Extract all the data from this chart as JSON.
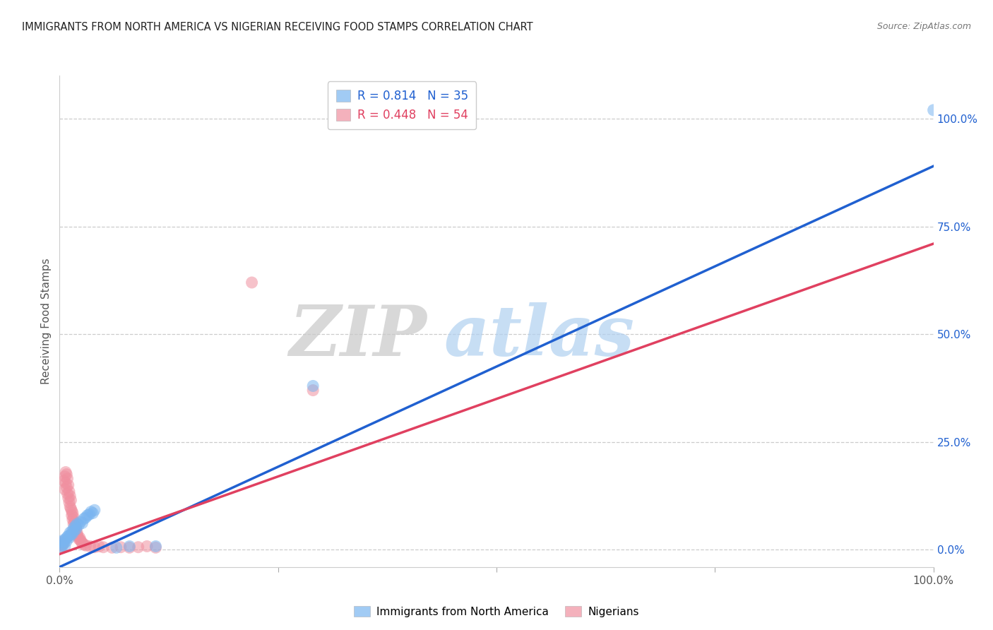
{
  "title": "IMMIGRANTS FROM NORTH AMERICA VS NIGERIAN RECEIVING FOOD STAMPS CORRELATION CHART",
  "source": "Source: ZipAtlas.com",
  "ylabel": "Receiving Food Stamps",
  "xlim": [
    0.0,
    1.0
  ],
  "ylim": [
    -0.04,
    1.1
  ],
  "ytick_positions": [
    0.0,
    0.25,
    0.5,
    0.75,
    1.0
  ],
  "ytick_labels": [
    "0.0%",
    "25.0%",
    "50.0%",
    "75.0%",
    "100.0%"
  ],
  "xtick_positions": [
    0.0,
    0.25,
    0.5,
    0.75,
    1.0
  ],
  "xtick_labels": [
    "0.0%",
    "",
    "",
    "",
    "100.0%"
  ],
  "grid_color": "#cccccc",
  "background_color": "#ffffff",
  "watermark_zip": "ZIP",
  "watermark_atlas": "atlas",
  "legend_r1": "0.814",
  "legend_n1": "35",
  "legend_r2": "0.448",
  "legend_n2": "54",
  "blue_color": "#7ab5f0",
  "pink_color": "#f090a0",
  "blue_line_color": "#2060d0",
  "pink_line_color": "#e04060",
  "blue_label": "Immigrants from North America",
  "pink_label": "Nigerians",
  "blue_line_slope": 0.93,
  "blue_line_intercept": -0.04,
  "pink_line_slope": 0.72,
  "pink_line_intercept": -0.01,
  "blue_scatter": [
    [
      0.001,
      0.005
    ],
    [
      0.002,
      0.018
    ],
    [
      0.003,
      0.01
    ],
    [
      0.004,
      0.022
    ],
    [
      0.005,
      0.015
    ],
    [
      0.006,
      0.008
    ],
    [
      0.007,
      0.025
    ],
    [
      0.008,
      0.02
    ],
    [
      0.009,
      0.03
    ],
    [
      0.01,
      0.032
    ],
    [
      0.011,
      0.028
    ],
    [
      0.012,
      0.04
    ],
    [
      0.013,
      0.035
    ],
    [
      0.014,
      0.042
    ],
    [
      0.015,
      0.038
    ],
    [
      0.016,
      0.05
    ],
    [
      0.017,
      0.045
    ],
    [
      0.018,
      0.055
    ],
    [
      0.019,
      0.048
    ],
    [
      0.02,
      0.06
    ],
    [
      0.022,
      0.058
    ],
    [
      0.024,
      0.065
    ],
    [
      0.026,
      0.062
    ],
    [
      0.028,
      0.072
    ],
    [
      0.03,
      0.075
    ],
    [
      0.032,
      0.08
    ],
    [
      0.034,
      0.082
    ],
    [
      0.036,
      0.088
    ],
    [
      0.038,
      0.085
    ],
    [
      0.04,
      0.092
    ],
    [
      0.065,
      0.005
    ],
    [
      0.08,
      0.008
    ],
    [
      0.11,
      0.008
    ],
    [
      0.29,
      0.38
    ],
    [
      1.0,
      1.02
    ]
  ],
  "pink_scatter": [
    [
      0.001,
      0.01
    ],
    [
      0.002,
      0.008
    ],
    [
      0.003,
      0.015
    ],
    [
      0.004,
      0.012
    ],
    [
      0.005,
      0.02
    ],
    [
      0.005,
      0.16
    ],
    [
      0.006,
      0.14
    ],
    [
      0.006,
      0.17
    ],
    [
      0.007,
      0.155
    ],
    [
      0.007,
      0.18
    ],
    [
      0.008,
      0.175
    ],
    [
      0.008,
      0.145
    ],
    [
      0.009,
      0.165
    ],
    [
      0.009,
      0.13
    ],
    [
      0.01,
      0.12
    ],
    [
      0.01,
      0.15
    ],
    [
      0.011,
      0.11
    ],
    [
      0.011,
      0.135
    ],
    [
      0.012,
      0.1
    ],
    [
      0.012,
      0.125
    ],
    [
      0.013,
      0.095
    ],
    [
      0.013,
      0.115
    ],
    [
      0.014,
      0.09
    ],
    [
      0.014,
      0.08
    ],
    [
      0.015,
      0.07
    ],
    [
      0.015,
      0.085
    ],
    [
      0.016,
      0.075
    ],
    [
      0.016,
      0.06
    ],
    [
      0.017,
      0.065
    ],
    [
      0.018,
      0.055
    ],
    [
      0.018,
      0.045
    ],
    [
      0.019,
      0.05
    ],
    [
      0.02,
      0.04
    ],
    [
      0.02,
      0.035
    ],
    [
      0.021,
      0.03
    ],
    [
      0.022,
      0.025
    ],
    [
      0.023,
      0.028
    ],
    [
      0.024,
      0.022
    ],
    [
      0.025,
      0.018
    ],
    [
      0.026,
      0.015
    ],
    [
      0.028,
      0.012
    ],
    [
      0.03,
      0.01
    ],
    [
      0.035,
      0.008
    ],
    [
      0.04,
      0.006
    ],
    [
      0.045,
      0.008
    ],
    [
      0.05,
      0.006
    ],
    [
      0.06,
      0.005
    ],
    [
      0.07,
      0.006
    ],
    [
      0.08,
      0.005
    ],
    [
      0.09,
      0.006
    ],
    [
      0.1,
      0.008
    ],
    [
      0.11,
      0.005
    ],
    [
      0.22,
      0.62
    ],
    [
      0.29,
      0.37
    ]
  ]
}
